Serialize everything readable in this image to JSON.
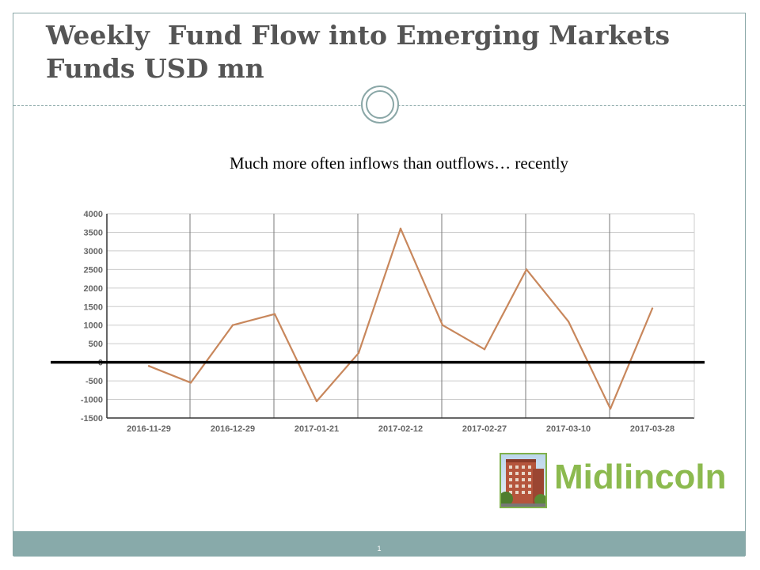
{
  "slide": {
    "title": "Weekly  Fund Flow into Emerging Markets Funds USD mn",
    "subtitle": "Much more often inflows than outflows… recently",
    "page_number": "1"
  },
  "logo": {
    "text": "Midlincoln",
    "icon": "building-photo-icon",
    "color": "#8cba4f"
  },
  "colors": {
    "accent": "#8aa7a7",
    "footer": "#88aaaa",
    "line": "#c8875c",
    "zero_line": "#000000"
  },
  "chart_data": {
    "type": "line",
    "title": "",
    "xlabel": "",
    "ylabel": "",
    "ylim": [
      -1500,
      4000
    ],
    "yticks": [
      4000,
      3500,
      3000,
      2500,
      2000,
      1500,
      1000,
      500,
      0,
      -500,
      -1000,
      -1500
    ],
    "x_tick_labels": [
      "2016-11-29",
      "2016-12-29",
      "2017-01-21",
      "2017-02-12",
      "2017-02-27",
      "2017-03-10",
      "2017-03-28"
    ],
    "grid": true,
    "zero_line_emphasized": true,
    "series": [
      {
        "values": [
          -100,
          -550,
          1000,
          1300,
          -1050,
          250,
          3600,
          1000,
          350,
          2500,
          1100,
          -1250,
          1450
        ]
      }
    ]
  }
}
